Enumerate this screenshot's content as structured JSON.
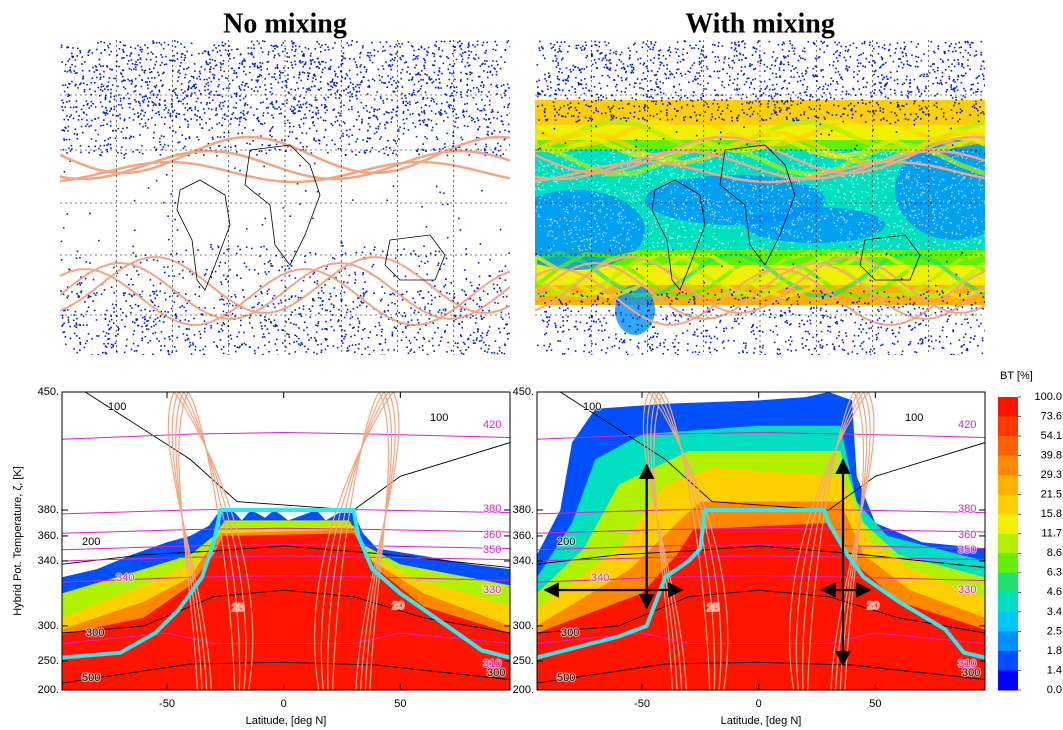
{
  "chart_data": [
    {
      "type": "map",
      "title": "No mixing",
      "mixing": false
    },
    {
      "type": "map",
      "title": "With mixing",
      "mixing": true
    },
    {
      "type": "contour",
      "mixing": false,
      "xlabel": "Latitude, [deg N]",
      "ylabel": "Hybrid Pot. Temperature, ζ, [K]",
      "xlim": [
        -95,
        97
      ],
      "xticks": [
        -50,
        0,
        50
      ],
      "ylim": [
        200,
        450
      ],
      "yticks": [
        {
          "value": 200,
          "label": "200."
        },
        {
          "value": 250,
          "label": "250."
        },
        {
          "value": 300,
          "label": "300."
        },
        {
          "value": 340,
          "label": "340."
        },
        {
          "value": 360,
          "label": "360."
        },
        {
          "value": 380,
          "label": "380."
        },
        {
          "value": 450,
          "label": "450."
        }
      ],
      "contour_labels": [
        100,
        100,
        420,
        380,
        360,
        350,
        340,
        330,
        310,
        300,
        300,
        200,
        500,
        25,
        20
      ]
    },
    {
      "type": "contour",
      "mixing": true,
      "xlabel": "Latitude, [deg N]",
      "xlim": [
        -95,
        97
      ],
      "xticks": [
        -50,
        0,
        50
      ],
      "ylim": [
        200,
        450
      ],
      "yticks": [
        {
          "value": 200,
          "label": "200."
        },
        {
          "value": 250,
          "label": "250."
        },
        {
          "value": 300,
          "label": "300."
        },
        {
          "value": 340,
          "label": "340."
        },
        {
          "value": 360,
          "label": "360."
        },
        {
          "value": 380,
          "label": "380."
        },
        {
          "value": 450,
          "label": "450."
        }
      ],
      "contour_labels": [
        100,
        100,
        420,
        380,
        360,
        350,
        340,
        330,
        310,
        300,
        300,
        200,
        500,
        25,
        20
      ]
    }
  ],
  "colorbar": {
    "label": "BT [%]",
    "ticks": [
      {
        "value": 100,
        "label": "100.0"
      },
      73.6,
      54.1,
      39.8,
      29.3,
      21.5,
      15.8,
      11.7,
      8.6,
      6.3,
      4.6,
      3.4,
      2.5,
      1.8,
      1.4,
      {
        "value": 0,
        "label": "0.0"
      }
    ],
    "colors": [
      "#ff1400",
      "#ff3800",
      "#ff6000",
      "#ff8800",
      "#ffb000",
      "#ffd000",
      "#f0f000",
      "#b0f000",
      "#60f000",
      "#20e070",
      "#00e0c0",
      "#00c8ff",
      "#0090ff",
      "#0050ff",
      "#0000ff"
    ]
  }
}
